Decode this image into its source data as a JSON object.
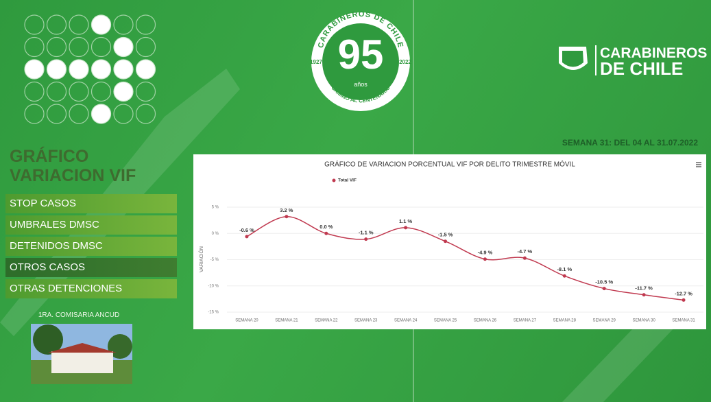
{
  "logo": {
    "ring_top": "CARABINEROS DE CHILE",
    "anniversary": "95",
    "years": "años",
    "start_year": "1927",
    "end_year": "2022",
    "ring_bottom": "CAMINO AL CENTENARIO"
  },
  "brand": {
    "line1": "CARABINEROS",
    "line2": "DE CHILE"
  },
  "week": "SEMANA 31: DEL 04 AL 31.07.2022",
  "sidebar": {
    "title_line1": "GRÁFICO",
    "title_line2": "VARIACION VIF",
    "menu": [
      "STOP CASOS",
      "UMBRALES DMSC",
      "DETENIDOS DMSC",
      "OTROS CASOS",
      "OTRAS DETENCIONES"
    ],
    "station": "1RA. COMISARIA ANCUD"
  },
  "chart_data": {
    "type": "line",
    "title": "GRÁFICO DE VARIACION PORCENTUAL VIF POR DELITO TRIMESTRE MÓVIL",
    "y_label": "VARIACIÓN",
    "categories": [
      "SEMANA 20",
      "SEMANA 21",
      "SEMANA 22",
      "SEMANA 23",
      "SEMANA 24",
      "SEMANA 25",
      "SEMANA 26",
      "SEMANA 27",
      "SEMANA 28",
      "SEMANA 29",
      "SEMANA 30",
      "SEMANA 31"
    ],
    "series": [
      {
        "name": "Total VIF",
        "color": "#c0394f",
        "values": [
          -0.6,
          3.2,
          0.0,
          -1.1,
          1.1,
          -1.5,
          -4.9,
          -4.7,
          -8.1,
          -10.5,
          -11.7,
          -12.7
        ],
        "value_labels": [
          "-0.6 %",
          "3.2 %",
          "0.0 %",
          "-1.1 %",
          "1.1 %",
          "-1.5 %",
          "-4.9 %",
          "-4.7 %",
          "-8.1 %",
          "-10.5 %",
          "-11.7 %",
          "-12.7 %"
        ]
      }
    ],
    "ylim": [
      -15,
      5
    ],
    "yticks": [
      {
        "value": 5,
        "label": "5 %"
      },
      {
        "value": 0,
        "label": "0 %"
      },
      {
        "value": -5,
        "label": "-5 %"
      },
      {
        "value": -10,
        "label": "-10 %"
      },
      {
        "value": -15,
        "label": "-15 %"
      }
    ],
    "grid": true,
    "legend": "top"
  }
}
